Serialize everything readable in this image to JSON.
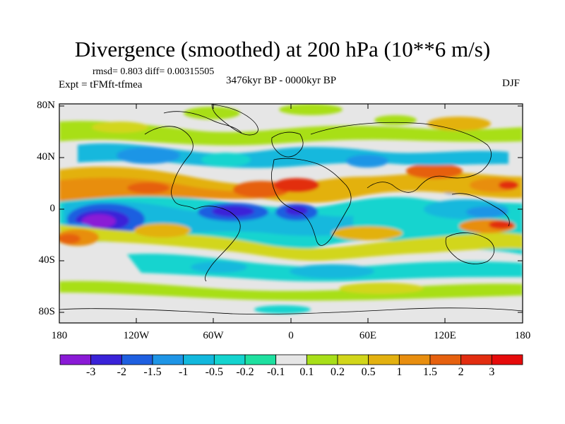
{
  "title": "Divergence (smoothed) at 200 hPa (10**6 m/s)",
  "stats": "rmsd= 0.803 diff= 0.00315505",
  "period": "3476kyr BP - 0000kyr BP",
  "experiment": "Expt = tFMft-tfmea",
  "season": "DJF",
  "axes": {
    "y_ticks": [
      "80N",
      "40N",
      "0",
      "40S",
      "80S"
    ],
    "x_ticks": [
      "180",
      "120W",
      "60W",
      "0",
      "60E",
      "120E",
      "180"
    ]
  },
  "colorbar": {
    "labels": [
      "-3",
      "-2",
      "-1.5",
      "-1",
      "-0.5",
      "-0.2",
      "-0.1",
      "0.1",
      "0.2",
      "0.5",
      "1",
      "1.5",
      "2",
      "3"
    ],
    "colors": [
      "#8a1ad6",
      "#3a22d8",
      "#1e5fe0",
      "#1e95e6",
      "#12b8dd",
      "#14d4cf",
      "#1ee0a0",
      "#e6e6e6",
      "#a8df19",
      "#d2d61a",
      "#e3b110",
      "#e88e0f",
      "#e6610f",
      "#e22d10",
      "#e60b0b"
    ]
  }
}
